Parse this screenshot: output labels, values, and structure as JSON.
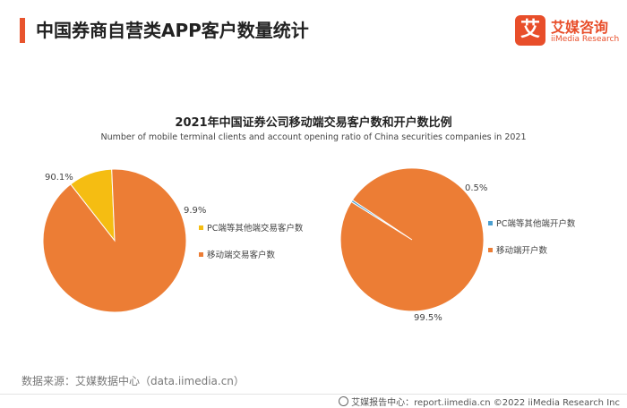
{
  "header": {
    "title": "中国券商自营类APP客户数量统计"
  },
  "logo": {
    "mark": "艾",
    "name_cn": "艾媒咨询",
    "name_en": "iiMedia Research"
  },
  "chart": {
    "title": "2021年中国证券公司移动端交易客户数和开户数比例",
    "subtitle": "Number of mobile terminal clients and account opening ratio of China securities companies in 2021"
  },
  "chart_data": [
    {
      "type": "pie",
      "slices": [
        {
          "label": "PC端等其他端交易客户数",
          "value": 9.9,
          "display": "9.9%",
          "color": "#f5bd12"
        },
        {
          "label": "移动端交易客户数",
          "value": 90.1,
          "display": "90.1%",
          "color": "#ec7d35"
        }
      ]
    },
    {
      "type": "pie",
      "slices": [
        {
          "label": "PC端等其他端开户数",
          "value": 0.5,
          "display": "0.5%",
          "color": "#4a9fd0"
        },
        {
          "label": "移动端开户数",
          "value": 99.5,
          "display": "99.5%",
          "color": "#ec7d35"
        }
      ]
    }
  ],
  "source": "数据来源：艾媒数据中心（data.iimedia.cn）",
  "footer": "艾媒报告中心：report.iimedia.cn  ©2022  iiMedia Research  Inc"
}
